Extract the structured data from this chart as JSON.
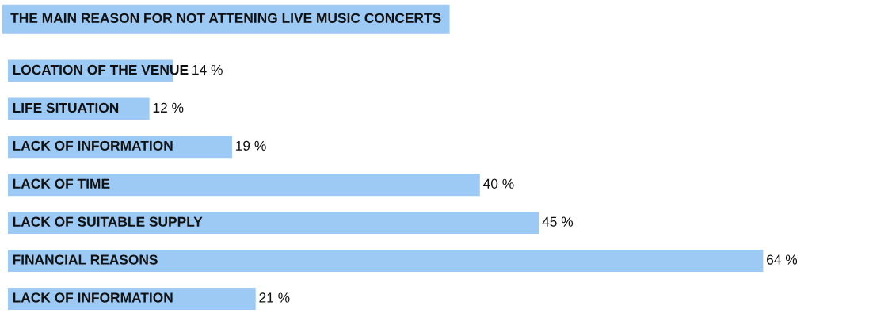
{
  "chart_data": {
    "type": "bar",
    "orientation": "horizontal",
    "title": "THE MAIN REASON FOR NOT ATTENING LIVE MUSIC CONCERTS",
    "categories": [
      "LOCATION OF THE VENUE",
      "LIFE SITUATION",
      "LACK OF INFORMATION",
      "LACK OF TIME",
      "LACK OF SUITABLE SUPPLY",
      "FINANCIAL REASONS",
      "LACK OF INFORMATION"
    ],
    "values": [
      14,
      12,
      19,
      40,
      45,
      64,
      21
    ],
    "value_labels": [
      "14 %",
      "12 %",
      "19 %",
      "40 %",
      "45 %",
      "64 %",
      "21 %"
    ],
    "color": "#9ccaf4"
  }
}
